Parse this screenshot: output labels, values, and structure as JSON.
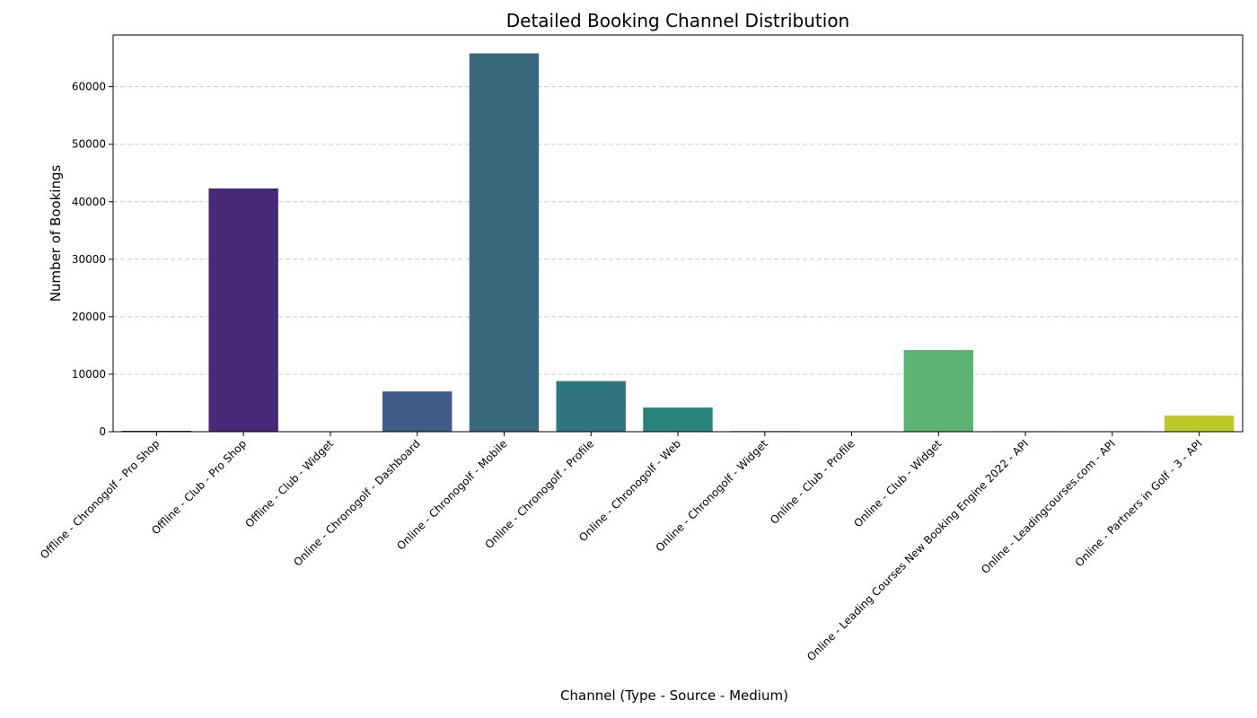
{
  "chart_data": {
    "type": "bar",
    "title": "Detailed Booking Channel Distribution",
    "xlabel": "Channel (Type - Source - Medium)",
    "ylabel": "Number of Bookings",
    "ylim": [
      0,
      69000
    ],
    "yticks": [
      0,
      10000,
      20000,
      30000,
      40000,
      50000,
      60000
    ],
    "grid": "y-dashed",
    "categories": [
      "Offline - Chronogolf - Pro Shop",
      "Offline - Club - Pro Shop",
      "Offline - Club - Widget",
      "Online - Chronogolf - Dashboard",
      "Online - Chronogolf - Mobile",
      "Online - Chronogolf - Profile",
      "Online - Chronogolf - Web",
      "Online - Chronogolf - Widget",
      "Online - Club - Profile",
      "Online - Club - Widget",
      "Online - Leading Courses New Booking Engine 2022 - API",
      "Online - Leadingcourses.com - API",
      "Online - Partners in Golf - 3 - API"
    ],
    "values": [
      150,
      42300,
      15,
      7000,
      65800,
      8800,
      4200,
      120,
      10,
      14200,
      100,
      100,
      2800
    ],
    "colors": [
      "#440154",
      "#482878",
      "#3e4989",
      "#3e5b85",
      "#39697f",
      "#31767f",
      "#29847c",
      "#22a17f",
      "#37b779",
      "#5ab273",
      "#8bc14d",
      "#aec834",
      "#bcc828"
    ]
  }
}
